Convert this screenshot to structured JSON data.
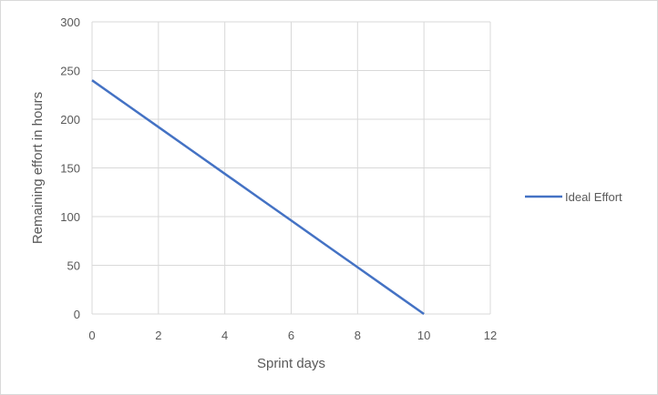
{
  "chart_data": {
    "type": "line",
    "title": "",
    "xlabel": "Sprint days",
    "ylabel": "Remaining effort in hours",
    "xlim": [
      0,
      12
    ],
    "ylim": [
      0,
      300
    ],
    "x_ticks": [
      0,
      2,
      4,
      6,
      8,
      10,
      12
    ],
    "y_ticks": [
      0,
      50,
      100,
      150,
      200,
      250,
      300
    ],
    "grid": true,
    "legend_position": "right",
    "series": [
      {
        "name": "Ideal Effort",
        "color": "#4472c4",
        "x": [
          0,
          1,
          2,
          3,
          4,
          5,
          6,
          7,
          8,
          9,
          10
        ],
        "values": [
          240,
          216,
          192,
          168,
          144,
          120,
          96,
          72,
          48,
          24,
          0
        ]
      }
    ]
  }
}
